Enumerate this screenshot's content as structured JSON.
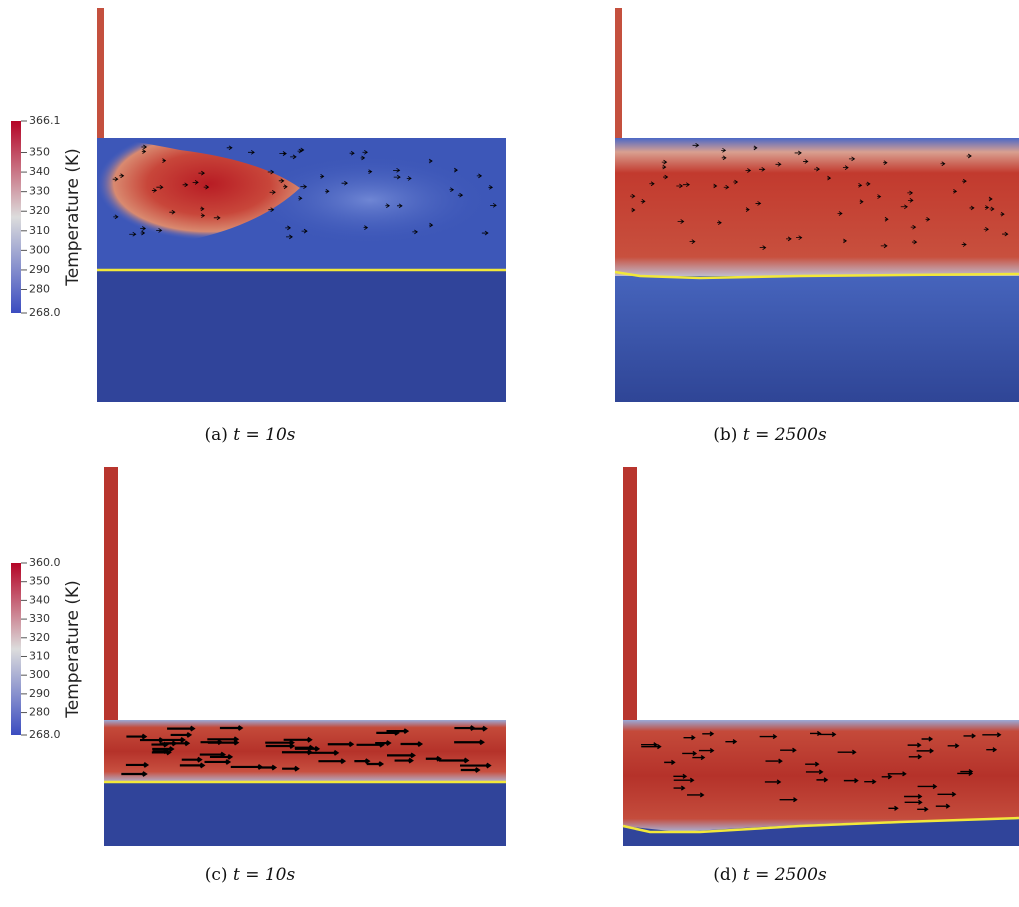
{
  "colorbars": [
    {
      "title": "Temperature (K)",
      "ticks": [
        "366.1",
        "350",
        "340",
        "330",
        "320",
        "310",
        "300",
        "290",
        "280",
        "268.0"
      ]
    },
    {
      "title": "Temperature (K)",
      "ticks": [
        "360.0",
        "350",
        "340",
        "330",
        "320",
        "310",
        "300",
        "290",
        "280",
        "268.0"
      ]
    }
  ],
  "captions": [
    {
      "label": "(a)",
      "time": "t = 10s"
    },
    {
      "label": "(b)",
      "time": "t = 2500s"
    },
    {
      "label": "(c)",
      "time": "t = 10s"
    },
    {
      "label": "(d)",
      "time": "t = 2500s"
    }
  ]
}
